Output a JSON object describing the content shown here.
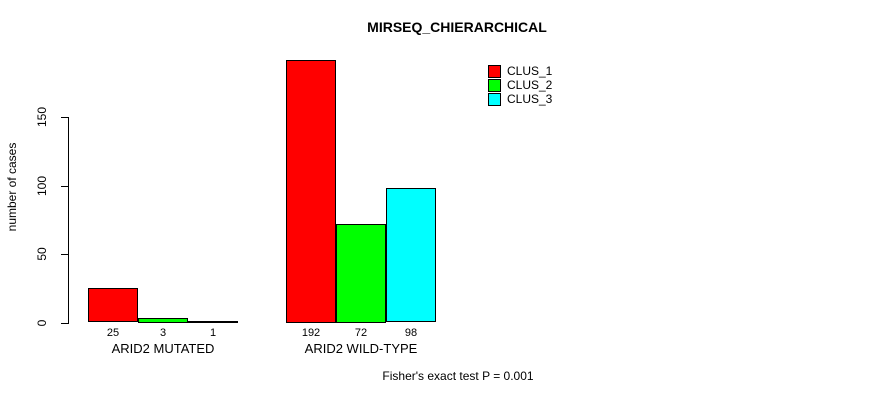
{
  "title": "MIRSEQ_CHIERARCHICAL",
  "footer": "Fisher's exact test P = 0.001",
  "y_axis": {
    "label": "number of cases",
    "ticks": [
      0,
      50,
      100,
      150
    ]
  },
  "legend": {
    "items": [
      {
        "label": "CLUS_1",
        "color": "#ff0000"
      },
      {
        "label": "CLUS_2",
        "color": "#00ff00"
      },
      {
        "label": "CLUS_3",
        "color": "#00ffff"
      }
    ]
  },
  "chart_data": {
    "type": "bar",
    "title": "MIRSEQ_CHIERARCHICAL",
    "xlabel": "",
    "ylabel": "number of cases",
    "ylim": [
      0,
      200
    ],
    "yticks": [
      0,
      50,
      100,
      150
    ],
    "grid": false,
    "legend_position": "top-right",
    "categories": [
      "ARID2 MUTATED",
      "ARID2 WILD-TYPE"
    ],
    "series": [
      {
        "name": "CLUS_1",
        "color": "#ff0000",
        "values": [
          25,
          192
        ]
      },
      {
        "name": "CLUS_2",
        "color": "#00ff00",
        "values": [
          3,
          72
        ]
      },
      {
        "name": "CLUS_3",
        "color": "#00ffff",
        "values": [
          1,
          98
        ]
      }
    ],
    "bar_value_labels": [
      [
        "25",
        "3",
        "1"
      ],
      [
        "192",
        "72",
        "98"
      ]
    ],
    "annotation": "Fisher's exact test P = 0.001"
  }
}
